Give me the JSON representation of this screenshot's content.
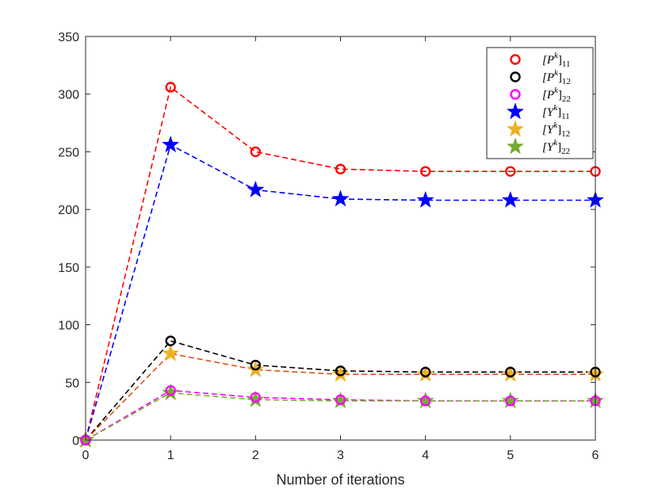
{
  "chart_data": {
    "type": "line",
    "title": "",
    "xlabel": "Number of iterations",
    "ylabel": "",
    "xlim": [
      0,
      6
    ],
    "ylim": [
      0,
      350
    ],
    "xticks": [
      0,
      1,
      2,
      3,
      4,
      5,
      6
    ],
    "yticks": [
      0,
      50,
      100,
      150,
      200,
      250,
      300,
      350
    ],
    "x": [
      0,
      1,
      2,
      3,
      4,
      5,
      6
    ],
    "legend_position": "top-right",
    "series": [
      {
        "name": "[P^k]_11",
        "legend_base": "[P",
        "legend_sup": "k",
        "legend_close": "]",
        "legend_sub": "11",
        "marker": "circle",
        "marker_color": "#ff0000",
        "line_color": "#ff0000",
        "values": [
          0,
          306,
          250,
          235,
          233,
          233,
          233
        ]
      },
      {
        "name": "[P^k]_12",
        "legend_base": "[P",
        "legend_sup": "k",
        "legend_close": "]",
        "legend_sub": "12",
        "marker": "circle",
        "marker_color": "#000000",
        "line_color": "#000000",
        "values": [
          0,
          86,
          65,
          60,
          59,
          59,
          59
        ]
      },
      {
        "name": "[P^k]_22",
        "legend_base": "[P",
        "legend_sup": "k",
        "legend_close": "]",
        "legend_sub": "22",
        "marker": "circle",
        "marker_color": "#ff00ff",
        "line_color": "#ff00ff",
        "values": [
          0,
          43,
          37,
          35,
          34,
          34,
          34
        ]
      },
      {
        "name": "[Y^k]_11",
        "legend_base": "[Y",
        "legend_sup": "k",
        "legend_close": "]",
        "legend_sub": "11",
        "marker": "star",
        "marker_color": "#0000ff",
        "line_color": "#0000ff",
        "values": [
          0,
          256,
          217,
          209,
          208,
          208,
          208
        ]
      },
      {
        "name": "[Y^k]_12",
        "legend_base": "[Y",
        "legend_sup": "k",
        "legend_close": "]",
        "legend_sub": "12",
        "marker": "star",
        "marker_color": "#edb120",
        "line_color": "#d95319",
        "values": [
          0,
          75,
          61,
          57,
          57,
          57,
          57
        ]
      },
      {
        "name": "[Y^k]_22",
        "legend_base": "[Y",
        "legend_sup": "k",
        "legend_close": "]",
        "legend_sub": "22",
        "marker": "star",
        "marker_color": "#77ac30",
        "line_color": "#77ac30",
        "values": [
          0,
          41,
          35,
          34,
          34,
          34,
          34
        ]
      }
    ]
  }
}
